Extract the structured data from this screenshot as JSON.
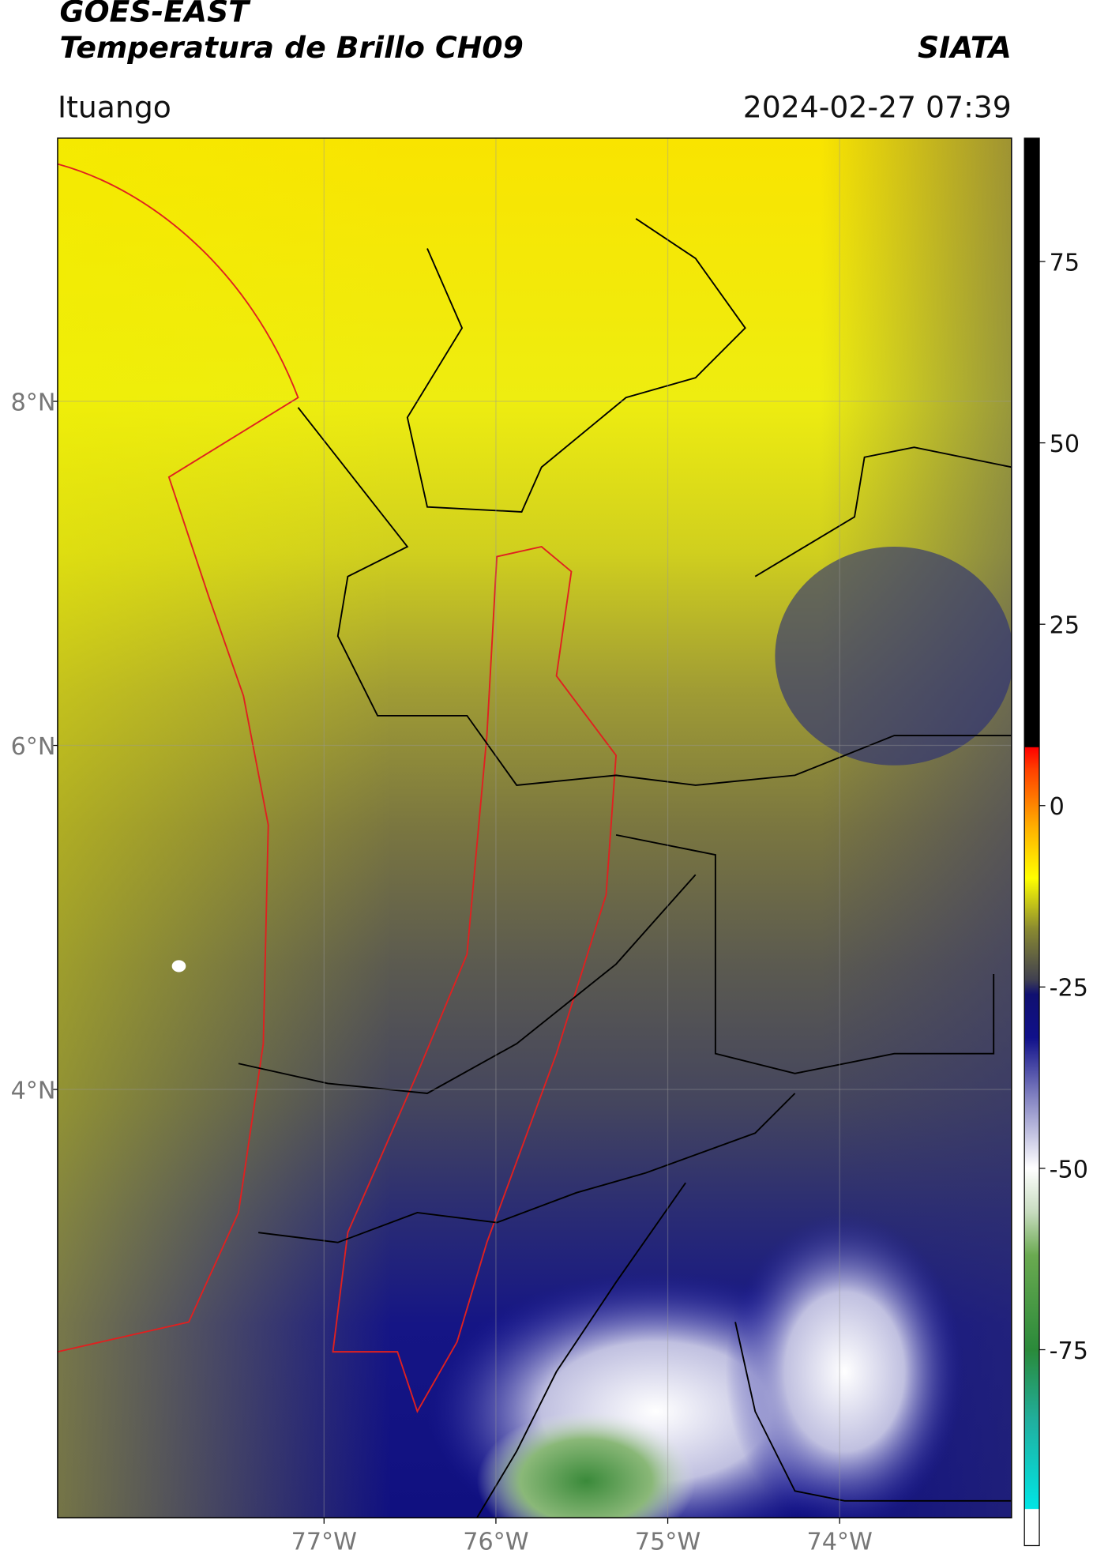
{
  "header": {
    "title": "GOES-EAST",
    "subtitle": "Temperatura de Brillo CH09",
    "source": "SIATA",
    "location": "Ituango",
    "datetime": "2024-02-27 07:39"
  },
  "map": {
    "xlim": [
      -78.55,
      -73.0
    ],
    "ylim": [
      1.51,
      9.53
    ],
    "xticks": [
      {
        "value": -77,
        "label": "77°W"
      },
      {
        "value": -76,
        "label": "76°W"
      },
      {
        "value": -75,
        "label": "75°W"
      },
      {
        "value": -74,
        "label": "74°W"
      }
    ],
    "yticks": [
      {
        "value": 8,
        "label": "8°N"
      },
      {
        "value": 6,
        "label": "6°N"
      },
      {
        "value": 4,
        "label": "4°N"
      }
    ],
    "grid": true
  },
  "colorbar": {
    "lim": [
      -102,
      92
    ],
    "ticks": [
      75,
      50,
      25,
      0,
      -25,
      -50,
      -75
    ],
    "stops": [
      {
        "value": -102,
        "color": "#ffffff"
      },
      {
        "value": -97,
        "color": "#ffffff"
      },
      {
        "value": -96.9,
        "color": "#00e5e5"
      },
      {
        "value": -85,
        "color": "#20b0a0"
      },
      {
        "value": -75,
        "color": "#2a8a3a"
      },
      {
        "value": -62,
        "color": "#6aaa50"
      },
      {
        "value": -56,
        "color": "#c8dcc0"
      },
      {
        "value": -50,
        "color": "#ffffff"
      },
      {
        "value": -40,
        "color": "#8080c0"
      },
      {
        "value": -32,
        "color": "#10108a"
      },
      {
        "value": -26,
        "color": "#101070"
      },
      {
        "value": -24,
        "color": "#404050"
      },
      {
        "value": -17,
        "color": "#8a8a30"
      },
      {
        "value": -10,
        "color": "#ffff00"
      },
      {
        "value": -3,
        "color": "#ffb000"
      },
      {
        "value": 5,
        "color": "#ff4000"
      },
      {
        "value": 8,
        "color": "#ff0000"
      },
      {
        "value": 8.1,
        "color": "#000000"
      },
      {
        "value": 92,
        "color": "#000000"
      }
    ]
  }
}
